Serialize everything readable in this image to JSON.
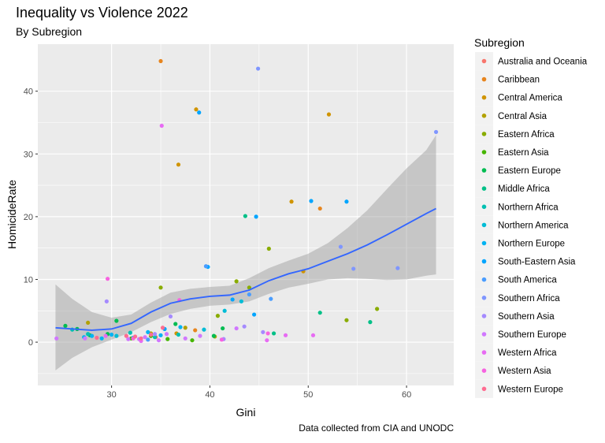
{
  "chart_data": {
    "type": "scatter",
    "title": "Inequality vs Violence 2022",
    "subtitle": "By Subregion",
    "xlabel": "Gini",
    "ylabel": "HomicideRate",
    "caption": "Data collected from CIA and UNODC",
    "xlim": [
      22.5,
      64.8
    ],
    "ylim": [
      -6.9,
      47.5
    ],
    "x_ticks": [
      30,
      40,
      50,
      60
    ],
    "y_ticks": [
      0,
      10,
      20,
      30,
      40
    ],
    "grid": true,
    "legend_position": "right",
    "legend_title": "Subregion",
    "series": [
      {
        "name": "Australia and Oceania",
        "color": "#F8766D",
        "points": [
          [
            34.5,
            0.8
          ]
        ]
      },
      {
        "name": "Caribbean",
        "color": "#E7851E",
        "points": [
          [
            35.0,
            44.8
          ],
          [
            51.2,
            21.3
          ],
          [
            38.5,
            1.9
          ]
        ]
      },
      {
        "name": "Central America",
        "color": "#D09400",
        "points": [
          [
            38.6,
            37.1
          ],
          [
            52.1,
            36.3
          ],
          [
            36.8,
            28.3
          ],
          [
            48.3,
            22.4
          ],
          [
            49.5,
            11.3
          ],
          [
            36.6,
            1.4
          ]
        ]
      },
      {
        "name": "Central Asia",
        "color": "#B2A100",
        "points": [
          [
            27.6,
            3.1
          ],
          [
            34.0,
            1.4
          ],
          [
            37.5,
            2.3
          ],
          [
            40.5,
            0.9
          ]
        ]
      },
      {
        "name": "Eastern Africa",
        "color": "#89AC00",
        "points": [
          [
            35.0,
            8.7
          ],
          [
            44.0,
            8.7
          ],
          [
            53.9,
            3.5
          ],
          [
            46.0,
            14.9
          ],
          [
            57.0,
            5.3
          ],
          [
            42.7,
            9.7
          ],
          [
            40.8,
            4.2
          ]
        ]
      },
      {
        "name": "Eastern Asia",
        "color": "#45B500",
        "points": [
          [
            32.0,
            0.6
          ],
          [
            35.7,
            0.5
          ],
          [
            38.2,
            0.3
          ],
          [
            34.0,
            1.0
          ]
        ]
      },
      {
        "name": "Eastern Europe",
        "color": "#00BC51",
        "points": [
          [
            25.3,
            2.6
          ],
          [
            26.5,
            2.1
          ],
          [
            27.8,
            1.1
          ],
          [
            29.6,
            1.3
          ],
          [
            30.5,
            3.4
          ],
          [
            36.5,
            2.9
          ],
          [
            40.4,
            1.0
          ],
          [
            41.3,
            2.2
          ]
        ]
      },
      {
        "name": "Middle Africa",
        "color": "#00C087",
        "points": [
          [
            43.6,
            20.1
          ],
          [
            51.2,
            4.7
          ],
          [
            56.3,
            3.2
          ],
          [
            46.5,
            1.4
          ]
        ]
      },
      {
        "name": "Northern Africa",
        "color": "#00C0B2",
        "points": [
          [
            26.0,
            2.0
          ],
          [
            27.6,
            1.3
          ],
          [
            31.9,
            1.5
          ],
          [
            34.4,
            0.8
          ],
          [
            36.8,
            1.2
          ]
        ]
      },
      {
        "name": "Northern America",
        "color": "#00BCD6",
        "points": [
          [
            41.5,
            5.0
          ],
          [
            43.2,
            6.5
          ],
          [
            30.5,
            1.0
          ],
          [
            39.4,
            2.0
          ]
        ]
      },
      {
        "name": "Northern Europe",
        "color": "#00B3F2",
        "points": [
          [
            27.2,
            0.8
          ],
          [
            28.0,
            1.0
          ],
          [
            29.0,
            0.6
          ],
          [
            30.0,
            1.2
          ],
          [
            32.2,
            0.7
          ],
          [
            33.7,
            1.6
          ],
          [
            35.0,
            1.1
          ],
          [
            37.0,
            2.4
          ]
        ]
      },
      {
        "name": "South-Eastern Asia",
        "color": "#00A5FF",
        "points": [
          [
            38.9,
            36.6
          ],
          [
            44.7,
            20.0
          ],
          [
            50.3,
            22.5
          ],
          [
            53.9,
            22.4
          ],
          [
            39.8,
            12.0
          ],
          [
            44.5,
            4.4
          ],
          [
            35.4,
            2.1
          ],
          [
            42.3,
            6.8
          ]
        ]
      },
      {
        "name": "South America",
        "color": "#4A9DFF",
        "points": [
          [
            39.6,
            12.1
          ],
          [
            44.0,
            7.6
          ],
          [
            46.2,
            6.9
          ],
          [
            33.7,
            0.4
          ]
        ]
      },
      {
        "name": "Southern Africa",
        "color": "#7F96FF",
        "points": [
          [
            44.9,
            43.6
          ],
          [
            63.0,
            33.5
          ],
          [
            53.3,
            15.2
          ],
          [
            54.6,
            11.7
          ],
          [
            59.1,
            11.8
          ]
        ]
      },
      {
        "name": "Southern Asia",
        "color": "#A58AFF",
        "points": [
          [
            29.5,
            6.5
          ],
          [
            34.4,
            1.3
          ],
          [
            36.0,
            4.1
          ],
          [
            41.4,
            0.5
          ],
          [
            43.5,
            2.5
          ],
          [
            45.4,
            1.6
          ]
        ]
      },
      {
        "name": "Southern Europe",
        "color": "#D077FF",
        "points": [
          [
            24.4,
            0.6
          ],
          [
            27.3,
            0.6
          ],
          [
            31.7,
            0.5
          ],
          [
            32.8,
            0.5
          ],
          [
            33.4,
            0.8
          ],
          [
            34.8,
            0.3
          ],
          [
            35.6,
            1.3
          ],
          [
            37.5,
            0.6
          ],
          [
            39.0,
            1.0
          ],
          [
            42.7,
            2.2
          ]
        ]
      },
      {
        "name": "Western Africa",
        "color": "#E76BF3",
        "points": [
          [
            35.1,
            34.5
          ],
          [
            45.8,
            0.3
          ],
          [
            47.7,
            1.1
          ],
          [
            50.5,
            1.1
          ],
          [
            29.4,
            1.0
          ],
          [
            33.0,
            0.2
          ]
        ]
      },
      {
        "name": "Western Asia",
        "color": "#F763E0",
        "points": [
          [
            29.6,
            10.1
          ],
          [
            36.9,
            6.7
          ],
          [
            41.2,
            0.4
          ],
          [
            45.9,
            1.4
          ],
          [
            32.2,
            0.6
          ]
        ]
      },
      {
        "name": "Western Europe",
        "color": "#FF6C91",
        "points": [
          [
            28.5,
            0.7
          ],
          [
            31.5,
            1.0
          ],
          [
            32.4,
            0.9
          ],
          [
            33.0,
            0.6
          ],
          [
            34.0,
            1.2
          ],
          [
            35.2,
            2.3
          ]
        ]
      }
    ],
    "smooth": {
      "color": "#3366FF",
      "band_color": "#999999",
      "line": [
        [
          24.3,
          2.3
        ],
        [
          26,
          2.1
        ],
        [
          28,
          1.9
        ],
        [
          30,
          2.1
        ],
        [
          32,
          3.0
        ],
        [
          34,
          4.8
        ],
        [
          36,
          6.2
        ],
        [
          38,
          6.9
        ],
        [
          40,
          7.3
        ],
        [
          42,
          7.5
        ],
        [
          44,
          8.3
        ],
        [
          46,
          9.8
        ],
        [
          48,
          10.9
        ],
        [
          50,
          11.7
        ],
        [
          52,
          12.9
        ],
        [
          54,
          14.1
        ],
        [
          56,
          15.5
        ],
        [
          58,
          17.1
        ],
        [
          60,
          18.8
        ],
        [
          62,
          20.5
        ],
        [
          63,
          21.3
        ]
      ],
      "lower": [
        [
          24.3,
          -4.5
        ],
        [
          26,
          -2.5
        ],
        [
          28,
          -0.8
        ],
        [
          30,
          0.4
        ],
        [
          32,
          1.6
        ],
        [
          34,
          3.2
        ],
        [
          36,
          4.5
        ],
        [
          38,
          5.3
        ],
        [
          40,
          5.8
        ],
        [
          42,
          6.0
        ],
        [
          44,
          6.5
        ],
        [
          46,
          7.7
        ],
        [
          48,
          8.7
        ],
        [
          50,
          9.3
        ],
        [
          52,
          10.0
        ],
        [
          54,
          10.2
        ],
        [
          56,
          10.1
        ],
        [
          58,
          9.9
        ],
        [
          60,
          10.0
        ],
        [
          62,
          10.6
        ],
        [
          63,
          10.8
        ]
      ],
      "upper": [
        [
          24.3,
          9.2
        ],
        [
          26,
          6.9
        ],
        [
          28,
          4.8
        ],
        [
          30,
          3.9
        ],
        [
          32,
          4.4
        ],
        [
          34,
          6.3
        ],
        [
          36,
          7.9
        ],
        [
          38,
          8.5
        ],
        [
          40,
          8.8
        ],
        [
          42,
          9.0
        ],
        [
          44,
          10.2
        ],
        [
          46,
          11.8
        ],
        [
          48,
          13.0
        ],
        [
          50,
          14.1
        ],
        [
          52,
          15.8
        ],
        [
          54,
          18.2
        ],
        [
          56,
          21.0
        ],
        [
          58,
          24.4
        ],
        [
          60,
          27.7
        ],
        [
          62,
          30.6
        ],
        [
          63,
          33.0
        ]
      ]
    }
  }
}
